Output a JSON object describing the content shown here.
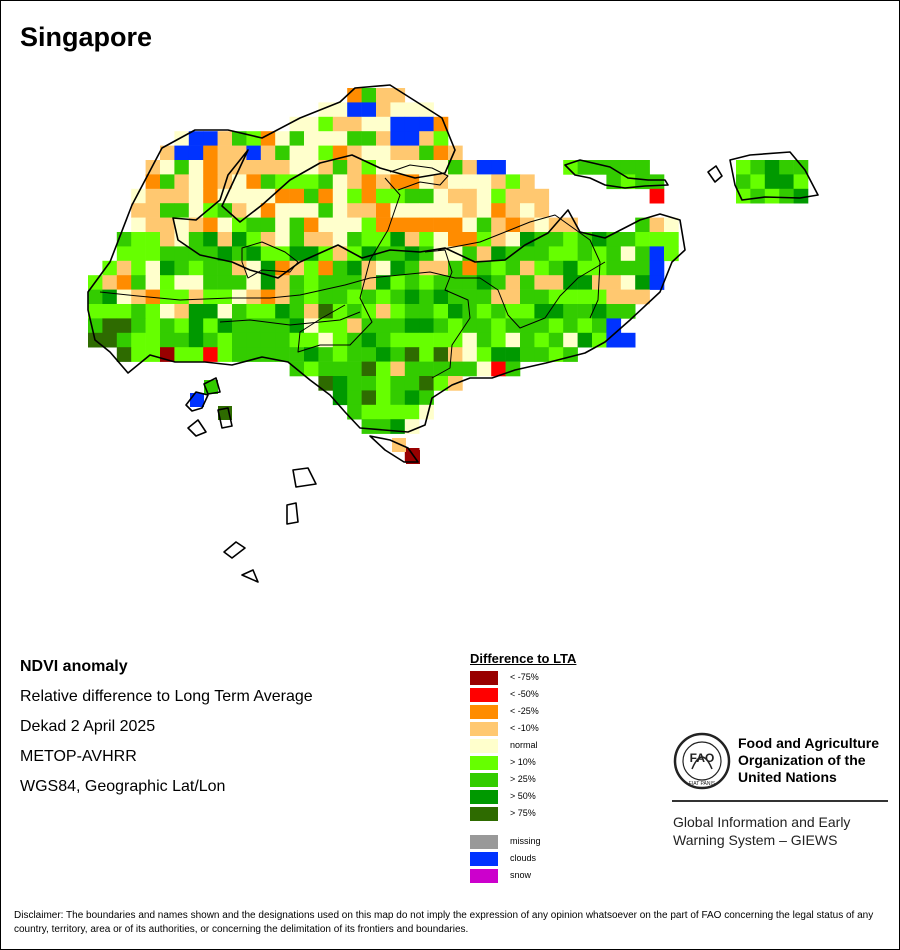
{
  "map": {
    "title": "Singapore"
  },
  "info": {
    "line1": "NDVI anomaly",
    "line2": "Relative difference to Long Term Average",
    "line3": "Dekad 2 April 2025",
    "line4": "METOP-AVHRR",
    "line5": "WGS84, Geographic Lat/Lon"
  },
  "legend": {
    "title": "Difference to LTA",
    "classes": [
      {
        "label": "< -75%",
        "color": "#990000"
      },
      {
        "label": "< -50%",
        "color": "#ff0000"
      },
      {
        "label": "< -25%",
        "color": "#ff8c00"
      },
      {
        "label": "< -10%",
        "color": "#ffc870"
      },
      {
        "label": "normal",
        "color": "#ffffcc"
      },
      {
        "label": "> 10%",
        "color": "#66ff00"
      },
      {
        "label": "> 25%",
        "color": "#33cc00"
      },
      {
        "label": "> 50%",
        "color": "#009900"
      },
      {
        "label": "> 75%",
        "color": "#2e6b00"
      }
    ],
    "extra": [
      {
        "label": "missing",
        "color": "#999999"
      },
      {
        "label": "clouds",
        "color": "#0033ff"
      },
      {
        "label": "snow",
        "color": "#cc00cc"
      }
    ]
  },
  "org": {
    "logo_letters": "FAO",
    "logo_motto": "FIAT PANIS",
    "name": "Food and Agriculture Organization of the United Nations",
    "system": "Global Information and Early Warning System – GIEWS"
  },
  "disclaimer": "Disclaimer: The boundaries and names shown and the designations used on this map do not imply the expression of any opinion whatsoever on the part of FAO concerning the legal status of any country, territory, area or of its authorities, or concerning the delimitation of its frontiers and boundaries."
}
